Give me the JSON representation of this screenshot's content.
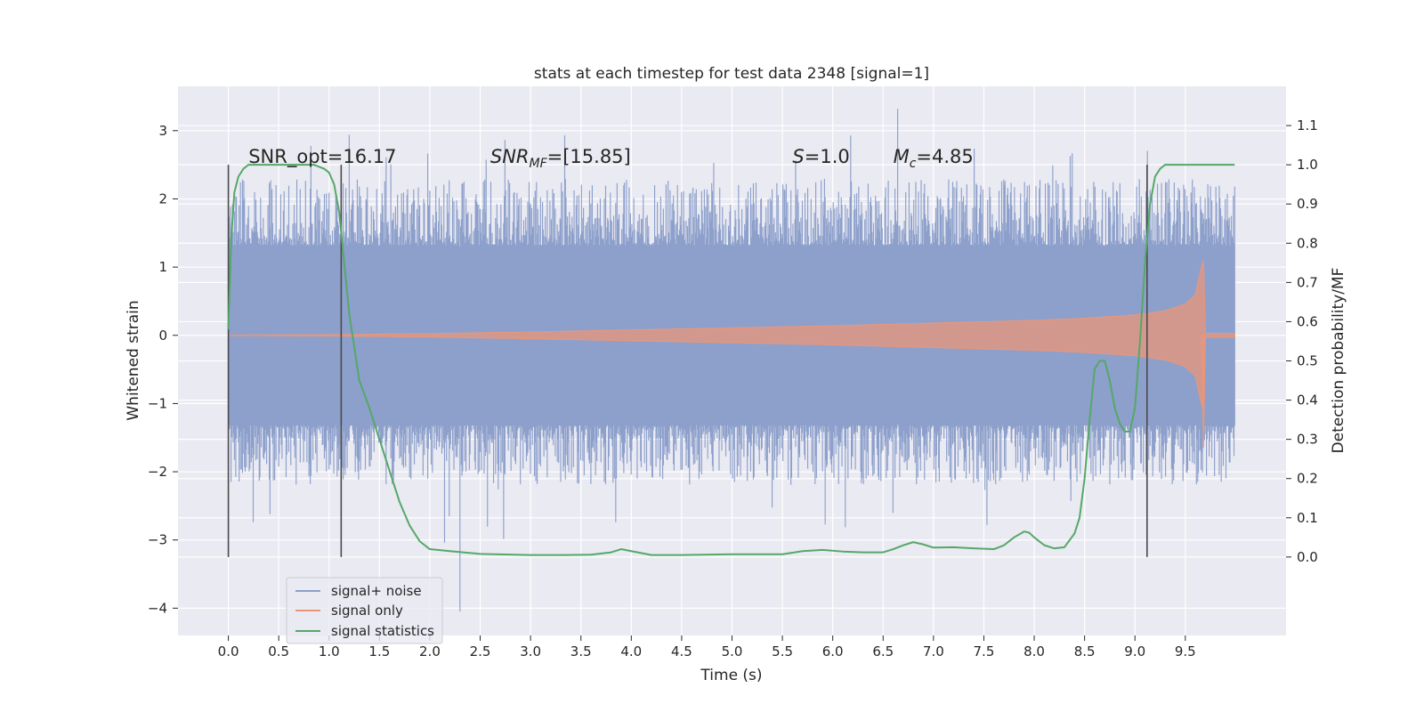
{
  "chart_data": {
    "type": "line",
    "title": "stats at each timestep for test data 2348 [signal=1]",
    "xlabel": "Time (s)",
    "ylabel_left": "Whitened strain",
    "ylabel_right": "Detection probability/MF",
    "xlim": [
      -0.5,
      10.5
    ],
    "ylim_left": [
      -4.4,
      3.65
    ],
    "ylim_right": [
      -0.2,
      1.2
    ],
    "x_ticks": [
      0.0,
      0.5,
      1.0,
      1.5,
      2.0,
      2.5,
      3.0,
      3.5,
      4.0,
      4.5,
      5.0,
      5.5,
      6.0,
      6.5,
      7.0,
      7.5,
      8.0,
      8.5,
      9.0,
      9.5
    ],
    "x_tick_labels": [
      "0.0",
      "0.5",
      "1.0",
      "1.5",
      "2.0",
      "2.5",
      "3.0",
      "3.5",
      "4.0",
      "4.5",
      "5.0",
      "5.5",
      "6.0",
      "6.5",
      "7.0",
      "7.5",
      "8.0",
      "8.5",
      "9.0",
      "9.5"
    ],
    "y_left_ticks": [
      3,
      2,
      1,
      0,
      -1,
      -2,
      -3,
      -4
    ],
    "y_left_tick_labels": [
      "3",
      "2",
      "1",
      "0",
      "−1",
      "−2",
      "−3",
      "−4"
    ],
    "y_right_ticks": [
      1.1,
      1.0,
      0.9,
      0.8,
      0.7,
      0.6,
      0.5,
      0.4,
      0.3,
      0.2,
      0.1,
      0.0
    ],
    "y_right_tick_labels": [
      "1.1",
      "1.0",
      "0.9",
      "0.8",
      "0.7",
      "0.6",
      "0.5",
      "0.4",
      "0.3",
      "0.2",
      "0.1",
      "0.0"
    ],
    "grid": true,
    "legend_position": "lower-left",
    "legend": [
      "signal+ noise",
      "signal only",
      "signal statistics"
    ],
    "colors": {
      "noise": "#8da0cb",
      "signal": "#e9967a",
      "stats": "#55a868",
      "vline": "#4a4a4a",
      "background": "#eaeaf2",
      "grid": "#ffffff"
    },
    "annotations": [
      {
        "x": 0.2,
        "y_right": 1.0,
        "name": "SNR_opt",
        "value": "=16.17"
      },
      {
        "x": 2.6,
        "y_right": 1.0,
        "name": "SNR",
        "sub": "MF",
        "value": "=[15.85]"
      },
      {
        "x": 5.6,
        "y_right": 1.0,
        "name": "S",
        "value": "=1.0"
      },
      {
        "x": 6.6,
        "y_right": 1.0,
        "name": "M",
        "sub": "c",
        "value": "=4.85"
      }
    ],
    "vertical_lines": [
      0.0,
      1.12,
      9.12
    ],
    "vertical_line_range_right": [
      0.0,
      1.0
    ],
    "series": [
      {
        "name": "signal statistics",
        "axis": "right",
        "x": [
          0.0,
          0.03,
          0.06,
          0.1,
          0.15,
          0.2,
          0.3,
          0.5,
          0.7,
          0.85,
          0.95,
          1.0,
          1.05,
          1.1,
          1.15,
          1.2,
          1.3,
          1.4,
          1.5,
          1.6,
          1.7,
          1.8,
          1.9,
          2.0,
          2.2,
          2.5,
          3.0,
          3.3,
          3.6,
          3.8,
          3.9,
          4.0,
          4.2,
          4.5,
          5.0,
          5.5,
          5.7,
          5.9,
          6.1,
          6.3,
          6.5,
          6.6,
          6.7,
          6.8,
          6.9,
          7.0,
          7.2,
          7.4,
          7.6,
          7.7,
          7.8,
          7.9,
          7.95,
          8.0,
          8.1,
          8.2,
          8.3,
          8.4,
          8.45,
          8.5,
          8.55,
          8.6,
          8.65,
          8.7,
          8.75,
          8.8,
          8.85,
          8.9,
          8.95,
          9.0,
          9.05,
          9.1,
          9.15,
          9.2,
          9.25,
          9.3,
          9.5,
          9.7,
          9.99
        ],
        "y": [
          0.58,
          0.82,
          0.93,
          0.97,
          0.99,
          1.0,
          1.0,
          1.0,
          1.0,
          1.0,
          0.99,
          0.98,
          0.95,
          0.88,
          0.75,
          0.62,
          0.45,
          0.38,
          0.3,
          0.22,
          0.14,
          0.08,
          0.04,
          0.02,
          0.015,
          0.008,
          0.005,
          0.005,
          0.006,
          0.012,
          0.02,
          0.015,
          0.005,
          0.005,
          0.007,
          0.007,
          0.015,
          0.018,
          0.014,
          0.012,
          0.012,
          0.02,
          0.03,
          0.038,
          0.032,
          0.024,
          0.025,
          0.022,
          0.02,
          0.03,
          0.05,
          0.065,
          0.062,
          0.05,
          0.03,
          0.022,
          0.025,
          0.06,
          0.1,
          0.2,
          0.35,
          0.48,
          0.5,
          0.5,
          0.45,
          0.38,
          0.34,
          0.32,
          0.32,
          0.38,
          0.55,
          0.75,
          0.9,
          0.97,
          0.99,
          1.0,
          1.0,
          1.0,
          1.0
        ]
      },
      {
        "name": "signal only",
        "axis": "left",
        "description_free": true,
        "envelope_x": [
          0.0,
          1.0,
          2.0,
          3.0,
          4.0,
          5.0,
          6.0,
          7.0,
          8.0,
          8.5,
          9.0,
          9.3,
          9.5,
          9.6,
          9.65,
          9.68,
          9.7,
          10.0
        ],
        "envelope_amp": [
          0.003,
          0.01,
          0.025,
          0.05,
          0.08,
          0.11,
          0.14,
          0.18,
          0.22,
          0.25,
          0.3,
          0.36,
          0.46,
          0.6,
          0.95,
          1.1,
          0.03,
          0.03
        ]
      },
      {
        "name": "signal+ noise",
        "axis": "left",
        "x_range": [
          0.0,
          9.99
        ],
        "core_amp": 1.32,
        "bulk_range": [
          -1.9,
          2.1
        ],
        "extreme_max": 3.32,
        "extreme_min": -4.05
      }
    ]
  }
}
